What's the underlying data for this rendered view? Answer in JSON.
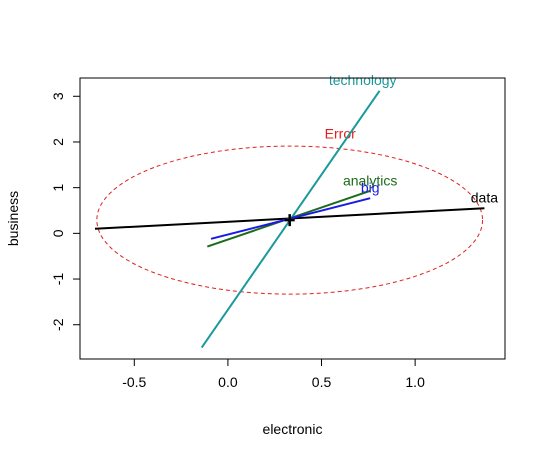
{
  "chart_data": {
    "type": "line",
    "title": "",
    "xlabel": "electronic",
    "ylabel": "business",
    "xlim": [
      -0.79,
      1.48
    ],
    "ylim": [
      -2.75,
      3.4
    ],
    "xticks": [
      -0.5,
      0.0,
      0.5,
      1.0
    ],
    "xtick_labels": [
      "-0.5",
      "0.0",
      "0.5",
      "1.0"
    ],
    "yticks": [
      -2,
      -1,
      0,
      1,
      2,
      3
    ],
    "ytick_labels": [
      "-2",
      "-1",
      "0",
      "1",
      "2",
      "3"
    ],
    "center": {
      "x": 0.33,
      "y": 0.29
    },
    "series": [
      {
        "name": "technology",
        "color": "#1A9A9A",
        "x": [
          -0.14,
          0.81
        ],
        "y": [
          -2.5,
          3.12
        ],
        "label_x": 0.72,
        "label_y": 3.25
      },
      {
        "name": "data",
        "color": "#000000",
        "x": [
          -0.71,
          1.37
        ],
        "y": [
          0.1,
          0.55
        ],
        "label_x": 1.37,
        "label_y": 0.68
      },
      {
        "name": "analytics",
        "color": "#1B6B1B",
        "x": [
          -0.11,
          0.76
        ],
        "y": [
          -0.29,
          0.93
        ],
        "label_x": 0.76,
        "label_y": 1.05
      },
      {
        "name": "big",
        "color": "#1A1AE6",
        "x": [
          -0.09,
          0.76
        ],
        "y": [
          -0.12,
          0.77
        ],
        "label_x": 0.76,
        "label_y": 0.89
      }
    ],
    "ellipse": {
      "name": "Error",
      "color": "#E02020",
      "style": "dashed",
      "center": [
        0.33,
        0.29
      ],
      "half_axis_x": 1.03,
      "half_axis_y": 1.62,
      "rotation_deg": 0,
      "label_x": 0.6,
      "label_y": 2.08
    }
  }
}
